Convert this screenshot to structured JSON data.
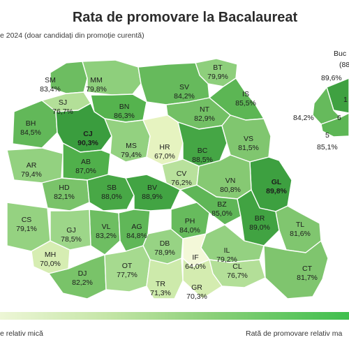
{
  "title": "Rata de promovare la Bacalaureat",
  "subtitle": "e 2024 (doar candidați din promoție curentă)",
  "counties": [
    {
      "code": "SM",
      "value": "83,4%",
      "color": "#6dbd61"
    },
    {
      "code": "MM",
      "value": "79,8%",
      "color": "#8ecf7c"
    },
    {
      "code": "BT",
      "value": "79,9%",
      "color": "#8ecf7c"
    },
    {
      "code": "SV",
      "value": "84,2%",
      "color": "#66ba5c"
    },
    {
      "code": "SJ",
      "value": "76,7%",
      "color": "#b3df98"
    },
    {
      "code": "BN",
      "value": "86,3%",
      "color": "#55b34e"
    },
    {
      "code": "IS",
      "value": "85,5%",
      "color": "#5cb654"
    },
    {
      "code": "BH",
      "value": "84,5%",
      "color": "#62b859"
    },
    {
      "code": "CJ",
      "value": "90,3%",
      "color": "#3a9d3e"
    },
    {
      "code": "NT",
      "value": "82,9%",
      "color": "#73c065"
    },
    {
      "code": "MS",
      "value": "79,4%",
      "color": "#93d180"
    },
    {
      "code": "HR",
      "value": "67,0%",
      "color": "#e6f3c0"
    },
    {
      "code": "BC",
      "value": "88,5%",
      "color": "#45a645"
    },
    {
      "code": "VS",
      "value": "81,5%",
      "color": "#80c66f"
    },
    {
      "code": "AR",
      "value": "79,4%",
      "color": "#93d180"
    },
    {
      "code": "AB",
      "value": "87,0%",
      "color": "#50b04b"
    },
    {
      "code": "CV",
      "value": "76,2%",
      "color": "#b8e19c"
    },
    {
      "code": "GL",
      "value": "89,8%",
      "color": "#3da040"
    },
    {
      "code": "HD",
      "value": "82,1%",
      "color": "#7ac36a"
    },
    {
      "code": "SB",
      "value": "88,0%",
      "color": "#48a846"
    },
    {
      "code": "BV",
      "value": "88,9%",
      "color": "#42a443"
    },
    {
      "code": "VN",
      "value": "80,8%",
      "color": "#86c973"
    },
    {
      "code": "CS",
      "value": "79,1%",
      "color": "#95d281"
    },
    {
      "code": "VL",
      "value": "83,2%",
      "color": "#6ebe62"
    },
    {
      "code": "AG",
      "value": "84,8%",
      "color": "#60b758"
    },
    {
      "code": "PH",
      "value": "84,0%",
      "color": "#67bb5d"
    },
    {
      "code": "BZ",
      "value": "85,0%",
      "color": "#5fb657"
    },
    {
      "code": "BR",
      "value": "89,0%",
      "color": "#41a342"
    },
    {
      "code": "TL",
      "value": "81,6%",
      "color": "#80c66f"
    },
    {
      "code": "GJ",
      "value": "78,5%",
      "color": "#9dd689"
    },
    {
      "code": "DB",
      "value": "78,9%",
      "color": "#97d384"
    },
    {
      "code": "MH",
      "value": "70,0%",
      "color": "#d6edb2"
    },
    {
      "code": "IL",
      "value": "79,2%",
      "color": "#94d181"
    },
    {
      "code": "IF",
      "value": "64,0%",
      "color": "#f3f8d8"
    },
    {
      "code": "DJ",
      "value": "82,2%",
      "color": "#79c369"
    },
    {
      "code": "OT",
      "value": "77,7%",
      "color": "#a6da8f"
    },
    {
      "code": "CL",
      "value": "76,7%",
      "color": "#b3df98"
    },
    {
      "code": "CT",
      "value": "81,7%",
      "color": "#7fc56e"
    },
    {
      "code": "TR",
      "value": "71,3%",
      "color": "#cdeaab"
    },
    {
      "code": "GR",
      "value": "70,3%",
      "color": "#d4ecb0"
    }
  ],
  "bucharest": {
    "label": "Buc",
    "total": "(88",
    "sectors": [
      {
        "code": "1",
        "value": "89,6%",
        "color": "#3fa141"
      },
      {
        "code": "6",
        "value": "84,2%",
        "color": "#66ba5c"
      },
      {
        "code": "5",
        "value": "85,1%",
        "color": "#5db655"
      }
    ]
  },
  "legend": {
    "left": "e relativ mică",
    "right": "Rată de promovare relativ ma"
  }
}
